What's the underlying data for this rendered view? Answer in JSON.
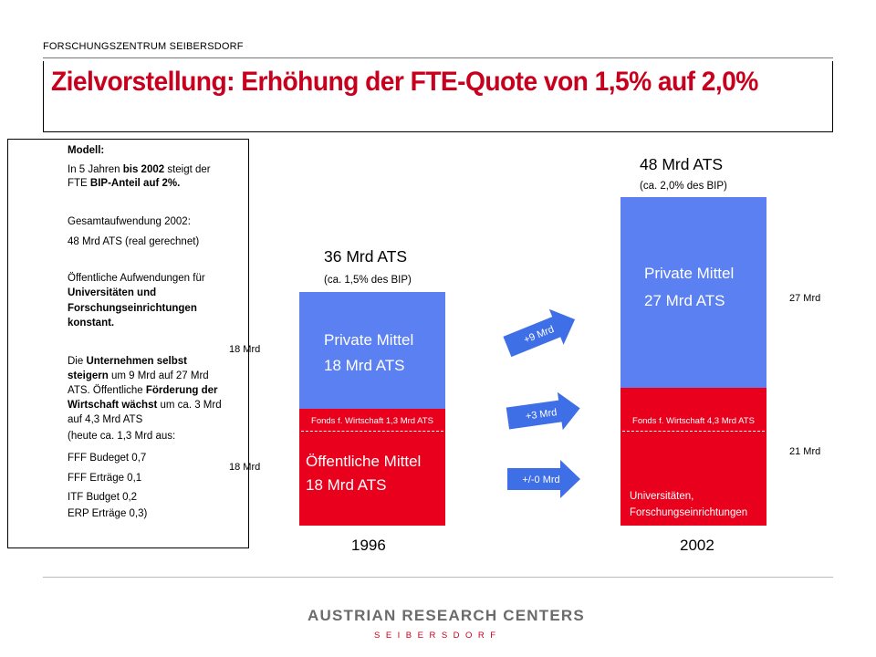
{
  "header": {
    "organization": "FORSCHUNGSZENTRUM SEIBERSDORF",
    "title": "Zielvorstellung: Erhöhung der FTE-Quote von 1,5% auf 2,0%"
  },
  "model": {
    "heading": "Modell:",
    "p1_l1_a": "In 5 Jahren ",
    "p1_l1_b": "bis 2002",
    "p1_l1_c": " steigt der",
    "p1_l2_a": "FTE ",
    "p1_l2_b": "BIP-Anteil auf 2%.",
    "p2_l1": "Gesamtaufwendung 2002:",
    "p2_l2": "48 Mrd ATS (real gerechnet)",
    "p3_l1": "Öffentliche Aufwendungen für",
    "p3_l2": "Universitäten und",
    "p3_l3": "Forschungseinrichtungen",
    "p3_l4": "konstant.",
    "p4_l1_a": "Die ",
    "p4_l1_b": "Unternehmen selbst",
    "p4_l2_a": "steigern",
    "p4_l2_b": " um 9 Mrd auf 27 Mrd",
    "p4_l3_a": "ATS. Öffentliche ",
    "p4_l3_b": "Förderung der",
    "p4_l4_a": "Wirtschaft wächst",
    "p4_l4_b": " um ca. 3 Mrd",
    "p4_l5": "auf 4,3 Mrd ATS",
    "p4_l6": "(heute ca. 1,3 Mrd aus:",
    "p4_l7": "FFF Budeget 0,7",
    "p4_l8": "FFF Erträge 0,1",
    "p4_l9": "ITF Budget 0,2",
    "p4_l10": "ERP Erträge 0,3)"
  },
  "chart_1996": {
    "year": "1996",
    "total": "36 Mrd ATS",
    "total_sub": "(ca. 1,5% des BIP)",
    "private_l1": "Private Mittel",
    "private_l2": "18 Mrd ATS",
    "fonds": "Fonds f. Wirtschaft 1,3 Mrd ATS",
    "public_l1": "Öffentliche Mittel",
    "public_l2": "18 Mrd ATS",
    "side_upper": "18 Mrd",
    "side_lower": "18 Mrd"
  },
  "chart_2002": {
    "year": "2002",
    "total": "48 Mrd ATS",
    "total_sub": "(ca. 2,0% des BIP)",
    "private_l1": "Private Mittel",
    "private_l2": "27 Mrd ATS",
    "fonds": "Fonds f. Wirtschaft 4,3 Mrd ATS",
    "public_l1": "Universitäten,",
    "public_l2": "Forschungseinrichtungen",
    "side_upper": "27 Mrd",
    "side_lower": "21 Mrd"
  },
  "arrows": {
    "top": "+9 Mrd",
    "middle": "+3 Mrd",
    "bottom": "+/-0 Mrd"
  },
  "footer": {
    "brand": "AUSTRIAN RESEARCH CENTERS",
    "sub": "SEIBERSDORF"
  },
  "colors": {
    "title_red": "#c8001e",
    "private_blue": "#5b80f1",
    "public_red": "#e8001c"
  }
}
